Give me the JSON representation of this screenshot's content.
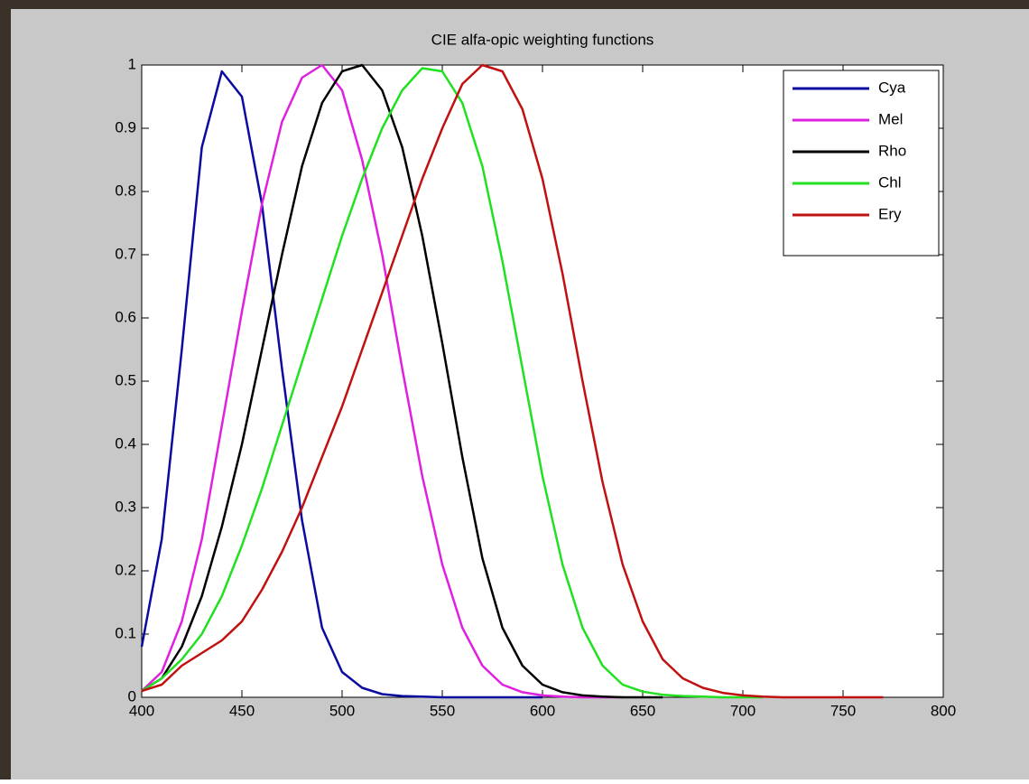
{
  "chart_data": {
    "type": "line",
    "title": "CIE alfa-opic weighting functions",
    "x": [
      400,
      410,
      420,
      430,
      440,
      450,
      460,
      470,
      480,
      490,
      500,
      510,
      520,
      530,
      540,
      550,
      560,
      570,
      580,
      590,
      600,
      610,
      620,
      630,
      640,
      650,
      660,
      670,
      680,
      690,
      700,
      710,
      720,
      730,
      740,
      750,
      760,
      770,
      780
    ],
    "series": [
      {
        "name": "Cya",
        "color": "#0a0aa0",
        "values": [
          0.08,
          0.25,
          0.55,
          0.87,
          0.99,
          0.95,
          0.78,
          0.52,
          0.28,
          0.11,
          0.04,
          0.015,
          0.005,
          0.002,
          0.001,
          0,
          0,
          0,
          0,
          0,
          0,
          null,
          null,
          null,
          null,
          null,
          null,
          null,
          null,
          null,
          null,
          null,
          null,
          null,
          null,
          null,
          null,
          null,
          null
        ]
      },
      {
        "name": "Mel",
        "color": "#e020e0",
        "values": [
          0.01,
          0.04,
          0.12,
          0.25,
          0.43,
          0.61,
          0.78,
          0.91,
          0.98,
          1.0,
          0.96,
          0.85,
          0.7,
          0.52,
          0.35,
          0.21,
          0.11,
          0.05,
          0.02,
          0.008,
          0.003,
          0.001,
          0,
          0,
          0,
          null,
          null,
          null,
          null,
          null,
          null,
          null,
          null,
          null,
          null,
          null,
          null,
          null,
          null
        ]
      },
      {
        "name": "Rho",
        "color": "#000000",
        "values": [
          0.01,
          0.03,
          0.08,
          0.16,
          0.27,
          0.4,
          0.55,
          0.7,
          0.84,
          0.94,
          0.99,
          1.0,
          0.96,
          0.87,
          0.73,
          0.56,
          0.38,
          0.22,
          0.11,
          0.05,
          0.02,
          0.008,
          0.003,
          0.001,
          0,
          0,
          0,
          null,
          null,
          null,
          null,
          null,
          null,
          null,
          null,
          null,
          null,
          null,
          null
        ]
      },
      {
        "name": "Chl",
        "color": "#20e020",
        "values": [
          0.01,
          0.03,
          0.06,
          0.1,
          0.16,
          0.24,
          0.33,
          0.43,
          0.53,
          0.63,
          0.73,
          0.82,
          0.9,
          0.96,
          0.995,
          0.99,
          0.94,
          0.84,
          0.69,
          0.52,
          0.35,
          0.21,
          0.11,
          0.05,
          0.02,
          0.009,
          0.004,
          0.002,
          0.001,
          0,
          0,
          0,
          null,
          null,
          null,
          null,
          null,
          null,
          null
        ]
      },
      {
        "name": "Ery",
        "color": "#c01010",
        "values": [
          0.01,
          0.02,
          0.05,
          0.07,
          0.09,
          0.12,
          0.17,
          0.23,
          0.3,
          0.38,
          0.46,
          0.55,
          0.64,
          0.73,
          0.82,
          0.9,
          0.97,
          1.0,
          0.99,
          0.93,
          0.82,
          0.67,
          0.5,
          0.34,
          0.21,
          0.12,
          0.06,
          0.03,
          0.015,
          0.007,
          0.003,
          0.001,
          0,
          0,
          0,
          0,
          0,
          0,
          null
        ]
      }
    ],
    "xlim": [
      400,
      800
    ],
    "xticks": [
      400,
      450,
      500,
      550,
      600,
      650,
      700,
      750,
      800
    ],
    "ylim": [
      0,
      1
    ],
    "yticks": [
      0,
      0.1,
      0.2,
      0.3,
      0.4,
      0.5,
      0.6,
      0.7,
      0.8,
      0.9,
      1
    ],
    "grid": false,
    "legend": "top-right"
  }
}
